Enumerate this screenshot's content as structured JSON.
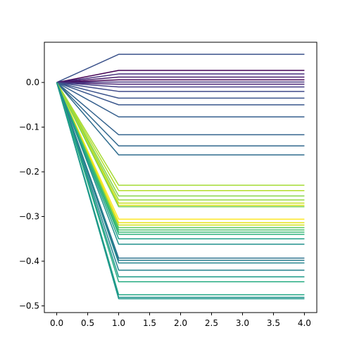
{
  "chart_data": {
    "type": "line",
    "title": "",
    "xlabel": "",
    "ylabel": "",
    "x": [
      0,
      1,
      2,
      3,
      4
    ],
    "xlim": [
      -0.2,
      4.2
    ],
    "ylim": [
      -0.515,
      0.09
    ],
    "grid": false,
    "xticks": [
      0.0,
      0.5,
      1.0,
      1.5,
      2.0,
      2.5,
      3.0,
      3.5,
      4.0
    ],
    "xtick_labels": [
      "0.0",
      "0.5",
      "1.0",
      "1.5",
      "2.0",
      "2.5",
      "3.0",
      "3.5",
      "4.0"
    ],
    "yticks": [
      0.0,
      -0.1,
      -0.2,
      -0.3,
      -0.4,
      -0.5
    ],
    "ytick_labels": [
      "0.0",
      "−0.1",
      "−0.2",
      "−0.3",
      "−0.4",
      "−0.5"
    ],
    "colormap": "viridis",
    "series": [
      {
        "final": 0.063,
        "color": "#3b528b"
      },
      {
        "final": 0.027,
        "color": "#440154"
      },
      {
        "final": 0.019,
        "color": "#472d7b"
      },
      {
        "final": 0.012,
        "color": "#481a6c"
      },
      {
        "final": 0.006,
        "color": "#440154"
      },
      {
        "final": 0.001,
        "color": "#46327e"
      },
      {
        "final": -0.004,
        "color": "#482475"
      },
      {
        "final": -0.01,
        "color": "#433e85"
      },
      {
        "final": -0.02,
        "color": "#3e4989"
      },
      {
        "final": -0.035,
        "color": "#3b528b"
      },
      {
        "final": -0.05,
        "color": "#39568c"
      },
      {
        "final": -0.077,
        "color": "#355f8d"
      },
      {
        "final": -0.117,
        "color": "#33638d"
      },
      {
        "final": -0.142,
        "color": "#31688e"
      },
      {
        "final": -0.162,
        "color": "#2f6c8e"
      },
      {
        "final": -0.23,
        "color": "#a5db36"
      },
      {
        "final": -0.242,
        "color": "#b5de2b"
      },
      {
        "final": -0.254,
        "color": "#86d549"
      },
      {
        "final": -0.263,
        "color": "#95d840"
      },
      {
        "final": -0.27,
        "color": "#c8e020"
      },
      {
        "final": -0.275,
        "color": "#dde318"
      },
      {
        "final": -0.278,
        "color": "#75d054"
      },
      {
        "final": -0.306,
        "color": "#fde725"
      },
      {
        "final": -0.314,
        "color": "#e5e419"
      },
      {
        "final": -0.319,
        "color": "#d2e21b"
      },
      {
        "final": -0.325,
        "color": "#5ec962"
      },
      {
        "final": -0.33,
        "color": "#4ac16d"
      },
      {
        "final": -0.335,
        "color": "#3bbb75"
      },
      {
        "final": -0.34,
        "color": "#2db27d"
      },
      {
        "final": -0.35,
        "color": "#1fa188"
      },
      {
        "final": -0.362,
        "color": "#21918c"
      },
      {
        "final": -0.393,
        "color": "#2c728e"
      },
      {
        "final": -0.398,
        "color": "#287c8e"
      },
      {
        "final": -0.404,
        "color": "#24868e"
      },
      {
        "final": -0.42,
        "color": "#26828e"
      },
      {
        "final": -0.435,
        "color": "#1e9b8a"
      },
      {
        "final": -0.446,
        "color": "#25ab82"
      },
      {
        "final": -0.475,
        "color": "#22a785"
      },
      {
        "final": -0.481,
        "color": "#20928c"
      },
      {
        "final": -0.484,
        "color": "#1f988b"
      }
    ]
  }
}
